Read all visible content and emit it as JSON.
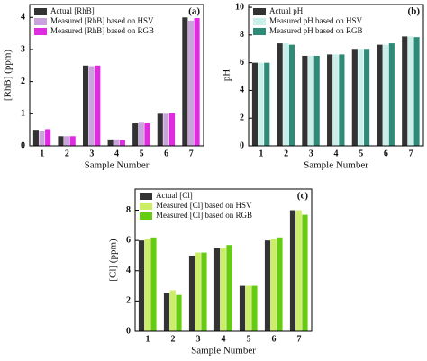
{
  "chart_data": [
    {
      "type": "bar",
      "panel_label": "(a)",
      "xlabel": "Sample Number",
      "ylabel": "[RhB] (ppm)",
      "categories": [
        "1",
        "2",
        "3",
        "4",
        "5",
        "6",
        "7"
      ],
      "ylim": [
        0,
        4.4
      ],
      "yticks": [
        0,
        1,
        2,
        3,
        4
      ],
      "series": [
        {
          "name": "Actual [RhB]",
          "color": "#333333",
          "values": [
            0.5,
            0.3,
            2.5,
            0.2,
            0.7,
            1.0,
            4.0
          ]
        },
        {
          "name": "Measured [RhB] based on HSV",
          "color": "#c9a3dc",
          "values": [
            0.45,
            0.3,
            2.48,
            0.2,
            0.72,
            1.0,
            3.9
          ]
        },
        {
          "name": "Measured [RhB] based on RGB",
          "color": "#e02ce0",
          "values": [
            0.52,
            0.3,
            2.5,
            0.18,
            0.7,
            1.02,
            3.98
          ]
        }
      ]
    },
    {
      "type": "bar",
      "panel_label": "(b)",
      "xlabel": "Sample Number",
      "ylabel": "pH",
      "categories": [
        "1",
        "2",
        "3",
        "4",
        "5",
        "6",
        "7"
      ],
      "ylim": [
        0,
        10.2
      ],
      "yticks": [
        0,
        2,
        4,
        6,
        8,
        10
      ],
      "series": [
        {
          "name": "Actual pH",
          "color": "#333333",
          "values": [
            6.0,
            7.4,
            6.5,
            6.6,
            7.0,
            7.3,
            7.9
          ]
        },
        {
          "name": "Measured pH based on HSV",
          "color": "#c8efea",
          "values": [
            6.0,
            7.4,
            6.5,
            6.6,
            7.0,
            7.3,
            7.9
          ]
        },
        {
          "name": "Measured pH based on RGB",
          "color": "#2e8b78",
          "values": [
            6.0,
            7.3,
            6.5,
            6.6,
            7.0,
            7.4,
            7.85
          ]
        }
      ]
    },
    {
      "type": "bar",
      "panel_label": "(c)",
      "xlabel": "Sample Number",
      "ylabel": "[Cl] (ppm)",
      "categories": [
        "1",
        "2",
        "3",
        "4",
        "5",
        "6",
        "7"
      ],
      "ylim": [
        0,
        9.4
      ],
      "yticks": [
        0,
        2,
        4,
        6,
        8
      ],
      "series": [
        {
          "name": "Actual [Cl]",
          "color": "#333333",
          "values": [
            6.0,
            2.5,
            5.0,
            5.5,
            3.0,
            6.0,
            8.0
          ]
        },
        {
          "name": "Measured [Cl] based on HSV",
          "color": "#ccee66",
          "values": [
            6.1,
            2.7,
            5.2,
            5.5,
            3.0,
            6.1,
            8.0
          ]
        },
        {
          "name": "Measured [Cl]  based on  RGB",
          "color": "#66cc11",
          "values": [
            6.2,
            2.4,
            5.2,
            5.7,
            3.0,
            6.2,
            7.7
          ]
        }
      ]
    }
  ]
}
